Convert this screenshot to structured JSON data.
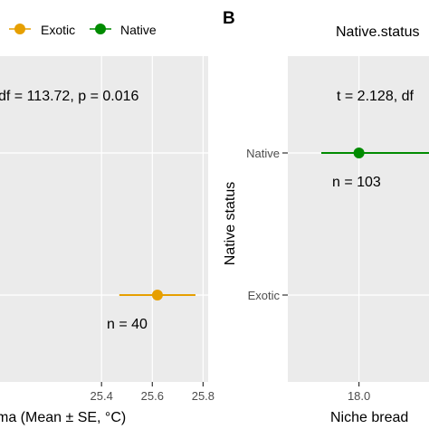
{
  "legend": {
    "items": [
      {
        "label": "Exotic",
        "color": "#E69F00"
      },
      {
        "label": "Native",
        "color": "#008B00"
      }
    ]
  },
  "colors": {
    "panel_bg": "#EBEBEB",
    "grid": "#FFFFFF",
    "exotic": "#E69F00",
    "native": "#008B00",
    "tick_text": "#4D4D4D"
  },
  "chart_data": [
    {
      "type": "scatter",
      "panel": "A",
      "orientation": "horizontal",
      "annotation": "df = 113.72, p = 0.016",
      "xlabel": "ma (Mean ± SE, °C)",
      "ylabel": "",
      "x_ticks": [
        "25.4",
        "25.6",
        "25.8"
      ],
      "x_tick_values": [
        25.4,
        25.6,
        25.8
      ],
      "xlim": [
        25.0,
        25.82
      ],
      "grid": true,
      "series": [
        {
          "name": "Native",
          "mean": null,
          "se_low": null,
          "se_high": null,
          "n_label": ""
        },
        {
          "name": "Exotic",
          "mean": 25.62,
          "se_low": 25.47,
          "se_high": 25.77,
          "n_label": "n = 40"
        }
      ]
    },
    {
      "type": "scatter",
      "panel": "B",
      "orientation": "horizontal",
      "panel_label": "B",
      "legend_title": "Native.status",
      "annotation": "t = 2.128, df",
      "xlabel": "Niche bread",
      "ylabel": "Native status",
      "categories": [
        "Native",
        "Exotic"
      ],
      "x_ticks": [
        "18.0"
      ],
      "x_tick_values": [
        18.0
      ],
      "xlim": [
        17.15,
        18.88
      ],
      "grid": true,
      "series": [
        {
          "name": "Native",
          "mean": 18.0,
          "se_low": 17.55,
          "se_high": 18.85,
          "n_label": "n = 103"
        },
        {
          "name": "Exotic",
          "mean": null,
          "se_low": null,
          "se_high": null,
          "n_label": ""
        }
      ]
    }
  ]
}
